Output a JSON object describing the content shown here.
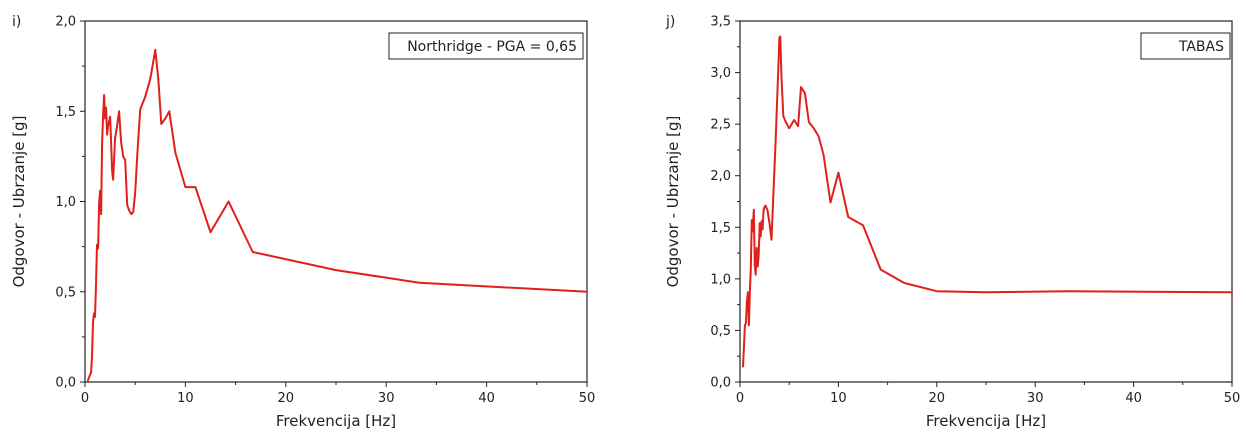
{
  "chart_data": [
    {
      "type": "line",
      "panel_label": "i)",
      "legend": "Northridge - PGA = 0,65",
      "xlabel": "Frekvencija [Hz]",
      "ylabel": "Odgovor - Ubrzanje [g]",
      "xlim": [
        0,
        50
      ],
      "ylim": [
        0,
        2.0
      ],
      "xticks": [
        "0",
        "10",
        "20",
        "30",
        "40",
        "50"
      ],
      "yticks": [
        "0,0",
        "0,5",
        "1,0",
        "1,5",
        "2,0"
      ],
      "grid": false,
      "color": "#e0201b",
      "x": [
        0.3,
        0.5,
        0.6,
        0.7,
        0.8,
        0.9,
        1.0,
        1.1,
        1.2,
        1.3,
        1.4,
        1.5,
        1.6,
        1.7,
        1.8,
        1.9,
        2.0,
        2.1,
        2.2,
        2.3,
        2.5,
        2.6,
        2.7,
        2.8,
        3.0,
        3.2,
        3.4,
        3.6,
        3.8,
        4.0,
        4.2,
        4.4,
        4.6,
        4.8,
        5.0,
        5.2,
        5.5,
        6.0,
        6.5,
        7.0,
        7.3,
        7.6,
        8.0,
        8.4,
        9.0,
        10.0,
        11.0,
        12.5,
        14.3,
        16.7,
        25.0,
        33.3,
        50.0
      ],
      "y": [
        0.01,
        0.04,
        0.05,
        0.14,
        0.33,
        0.38,
        0.36,
        0.54,
        0.76,
        0.74,
        0.99,
        1.06,
        0.93,
        1.32,
        1.48,
        1.59,
        1.46,
        1.52,
        1.37,
        1.42,
        1.47,
        1.33,
        1.17,
        1.12,
        1.35,
        1.42,
        1.5,
        1.33,
        1.25,
        1.23,
        0.98,
        0.95,
        0.93,
        0.94,
        1.05,
        1.25,
        1.51,
        1.58,
        1.68,
        1.84,
        1.68,
        1.43,
        1.46,
        1.5,
        1.27,
        1.08,
        1.08,
        0.83,
        1.0,
        0.72,
        0.62,
        0.55,
        0.5
      ]
    },
    {
      "type": "line",
      "panel_label": "j)",
      "legend": "TABAS",
      "xlabel": "Frekvencija [Hz]",
      "ylabel": "Odgovor - Ubrzanje [g]",
      "xlim": [
        0,
        50
      ],
      "ylim": [
        0,
        3.5
      ],
      "xticks": [
        "0",
        "10",
        "20",
        "30",
        "40",
        "50"
      ],
      "yticks": [
        "0,0",
        "0,5",
        "1,0",
        "1,5",
        "2,0",
        "2,5",
        "3,0",
        "3,5"
      ],
      "grid": false,
      "color": "#e0201b",
      "x": [
        0.3,
        0.4,
        0.5,
        0.6,
        0.7,
        0.8,
        0.9,
        1.0,
        1.1,
        1.2,
        1.3,
        1.4,
        1.5,
        1.6,
        1.7,
        1.8,
        1.9,
        2.0,
        2.1,
        2.2,
        2.3,
        2.4,
        2.5,
        2.6,
        2.8,
        3.0,
        3.2,
        3.4,
        3.6,
        3.8,
        4.0,
        4.1,
        4.2,
        4.4,
        4.6,
        5.0,
        5.5,
        5.9,
        6.2,
        6.6,
        7.0,
        7.5,
        8.0,
        8.5,
        9.2,
        10.0,
        11.0,
        12.5,
        14.3,
        16.7,
        20.0,
        25.0,
        33.3,
        50.0
      ],
      "y": [
        0.15,
        0.33,
        0.55,
        0.57,
        0.78,
        0.87,
        0.55,
        0.86,
        1.1,
        1.57,
        1.46,
        1.67,
        1.13,
        1.04,
        1.3,
        1.12,
        1.23,
        1.54,
        1.41,
        1.56,
        1.48,
        1.67,
        1.7,
        1.71,
        1.66,
        1.54,
        1.38,
        1.85,
        2.28,
        2.8,
        3.34,
        3.35,
        3.0,
        2.58,
        2.53,
        2.46,
        2.54,
        2.48,
        2.86,
        2.8,
        2.52,
        2.46,
        2.38,
        2.2,
        1.74,
        2.03,
        1.6,
        1.52,
        1.09,
        0.96,
        0.88,
        0.87,
        0.88,
        0.87
      ]
    }
  ]
}
